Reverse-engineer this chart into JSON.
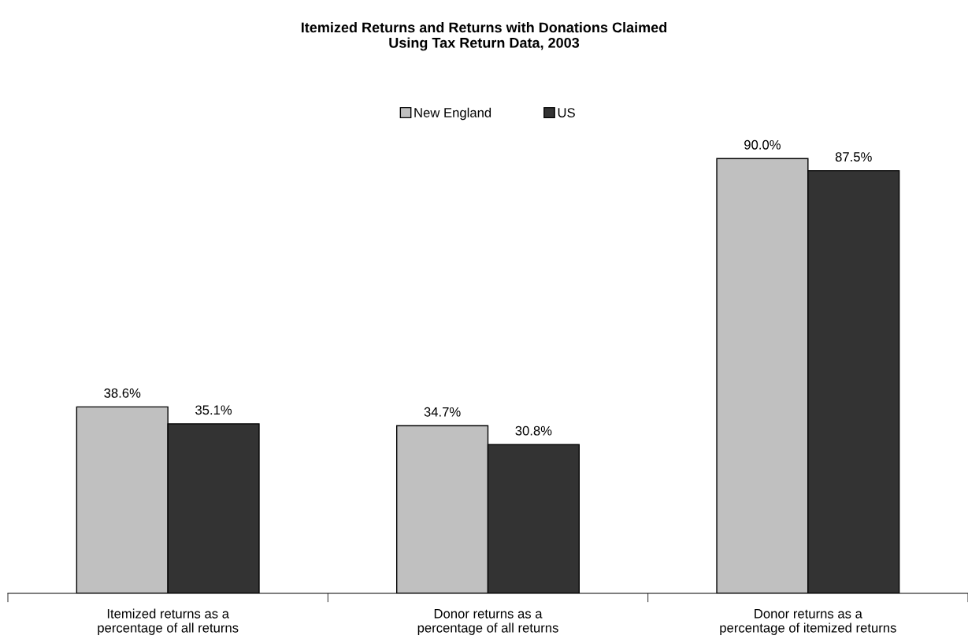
{
  "chart_data": {
    "type": "bar",
    "title": "Itemized Returns and Returns with Donations Claimed\nUsing Tax Return Data, 2003",
    "categories": [
      "Itemized returns as a\npercentage of all returns",
      "Donor returns as a\npercentage of all returns",
      "Donor returns as a\npercentage of itemized returns"
    ],
    "series": [
      {
        "name": "New England",
        "color": "#c0c0c0",
        "values": [
          38.6,
          34.7,
          90.0
        ],
        "value_labels": [
          "38.6%",
          "34.7%",
          "90.0%"
        ]
      },
      {
        "name": "US",
        "color": "#333333",
        "values": [
          35.1,
          30.8,
          87.5
        ],
        "value_labels": [
          "35.1%",
          "30.8%",
          "87.5%"
        ]
      }
    ],
    "ylim": [
      0,
      100
    ],
    "tick_labels": "x",
    "legend": "top",
    "grid": false
  }
}
